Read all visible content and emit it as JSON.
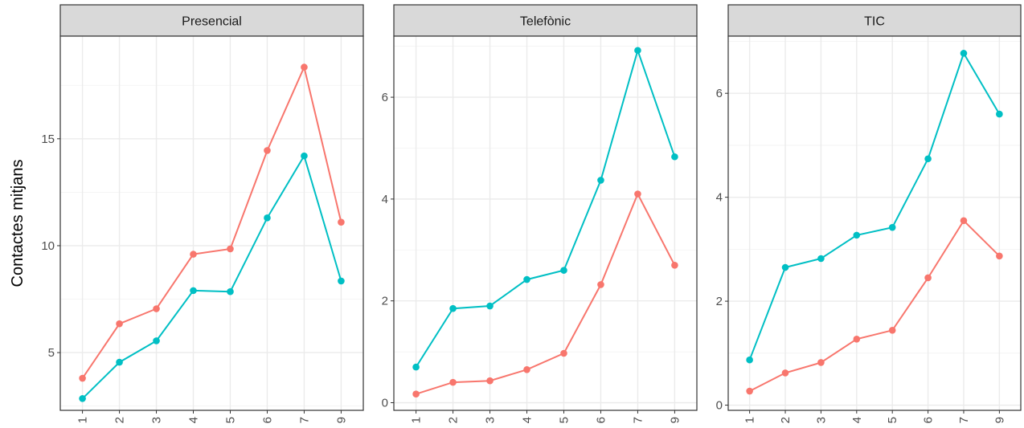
{
  "chart_data": {
    "type": "line",
    "ylabel": "Contactes mitjans",
    "xlabel": "",
    "categories": [
      "1",
      "2",
      "3",
      "4",
      "5",
      "6",
      "7",
      "9"
    ],
    "colors": {
      "red": "#f8766d",
      "teal": "#00bfc4",
      "grid": "#ebebeb",
      "strip": "#d9d9d9",
      "border": "#333333"
    },
    "grid": true,
    "legend": "none",
    "panels": [
      {
        "title": "Presencial",
        "ylim": [
          2.3,
          19.8
        ],
        "yticks": [
          5,
          10,
          15
        ],
        "series": [
          {
            "color": "#f8766d",
            "values": [
              3.8,
              6.35,
              7.05,
              9.6,
              9.85,
              14.45,
              18.35,
              11.1
            ]
          },
          {
            "color": "#00bfc4",
            "values": [
              2.85,
              4.55,
              5.55,
              7.9,
              7.85,
              11.3,
              14.2,
              8.35
            ]
          }
        ]
      },
      {
        "title": "Telefònic",
        "ylim": [
          -0.15,
          7.2
        ],
        "yticks": [
          0,
          2,
          4,
          6
        ],
        "series": [
          {
            "color": "#f8766d",
            "values": [
              0.17,
              0.4,
              0.43,
              0.65,
              0.97,
              2.32,
              4.1,
              2.7
            ]
          },
          {
            "color": "#00bfc4",
            "values": [
              0.7,
              1.85,
              1.9,
              2.42,
              2.6,
              4.37,
              6.92,
              4.83
            ]
          }
        ]
      },
      {
        "title": "TIC",
        "ylim": [
          -0.1,
          7.1
        ],
        "yticks": [
          0,
          2,
          4,
          6
        ],
        "series": [
          {
            "color": "#f8766d",
            "values": [
              0.27,
              0.62,
              0.82,
              1.27,
              1.44,
              2.45,
              3.55,
              2.87
            ]
          },
          {
            "color": "#00bfc4",
            "values": [
              0.87,
              2.65,
              2.82,
              3.27,
              3.42,
              4.74,
              6.77,
              5.6
            ]
          }
        ]
      }
    ]
  }
}
